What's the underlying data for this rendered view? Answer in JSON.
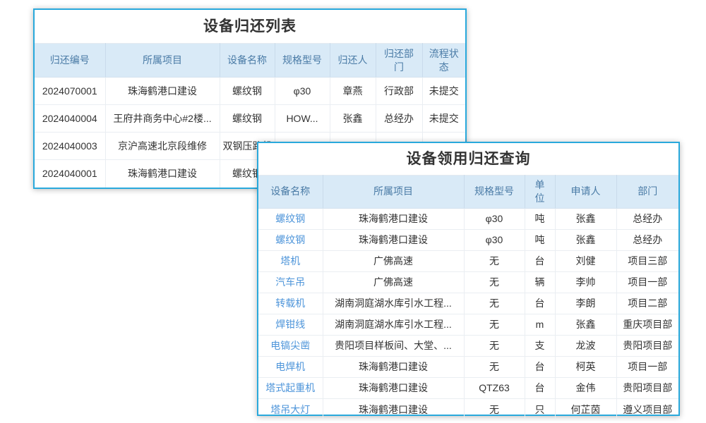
{
  "colors": {
    "card_border": "#29a9dc",
    "header_bg": "#d9eaf7",
    "header_text": "#4a7ba6",
    "body_text": "#333333",
    "link_text": "#4e95da"
  },
  "return_list": {
    "title": "设备归还列表",
    "columns": [
      "归还编号",
      "所属项目",
      "设备名称",
      "规格型号",
      "归还人",
      "归还部门",
      "流程状态"
    ],
    "rows": [
      [
        "2024070001",
        "珠海鹤港口建设",
        "螺纹钢",
        "φ30",
        "章燕",
        "行政部",
        "未提交"
      ],
      [
        "2024040004",
        "王府井商务中心#2楼...",
        "螺纹钢",
        "HOW...",
        "张鑫",
        "总经办",
        "未提交"
      ],
      [
        "2024040003",
        "京沪高速北京段维修",
        "双钢压路机",
        "",
        "",
        "",
        ""
      ],
      [
        "2024040001",
        "珠海鹤港口建设",
        "螺纹钢",
        "",
        "",
        "",
        ""
      ]
    ]
  },
  "query_list": {
    "title": "设备领用归还查询",
    "columns": [
      "设备名称",
      "所属项目",
      "规格型号",
      "单位",
      "申请人",
      "部门"
    ],
    "rows": [
      [
        "螺纹钢",
        "珠海鹤港口建设",
        "φ30",
        "吨",
        "张鑫",
        "总经办"
      ],
      [
        "螺纹钢",
        "珠海鹤港口建设",
        "φ30",
        "吨",
        "张鑫",
        "总经办"
      ],
      [
        "塔机",
        "广佛高速",
        "无",
        "台",
        "刘健",
        "项目三部"
      ],
      [
        "汽车吊",
        "广佛高速",
        "无",
        "辆",
        "李帅",
        "项目一部"
      ],
      [
        "转载机",
        "湖南洞庭湖水库引水工程...",
        "无",
        "台",
        "李朗",
        "项目二部"
      ],
      [
        "焊钳线",
        "湖南洞庭湖水库引水工程...",
        "无",
        "m",
        "张鑫",
        "重庆项目部"
      ],
      [
        "电镐尖凿",
        "贵阳项目样板间、大堂、...",
        "无",
        "支",
        "龙波",
        "贵阳项目部"
      ],
      [
        "电焊机",
        "珠海鹤港口建设",
        "无",
        "台",
        "柯英",
        "项目一部"
      ],
      [
        "塔式起重机",
        "珠海鹤港口建设",
        "QTZ63",
        "台",
        "金伟",
        "贵阳项目部"
      ],
      [
        "塔吊大灯",
        "珠海鹤港口建设",
        "无",
        "只",
        "何芷茵",
        "遵义项目部"
      ]
    ]
  }
}
